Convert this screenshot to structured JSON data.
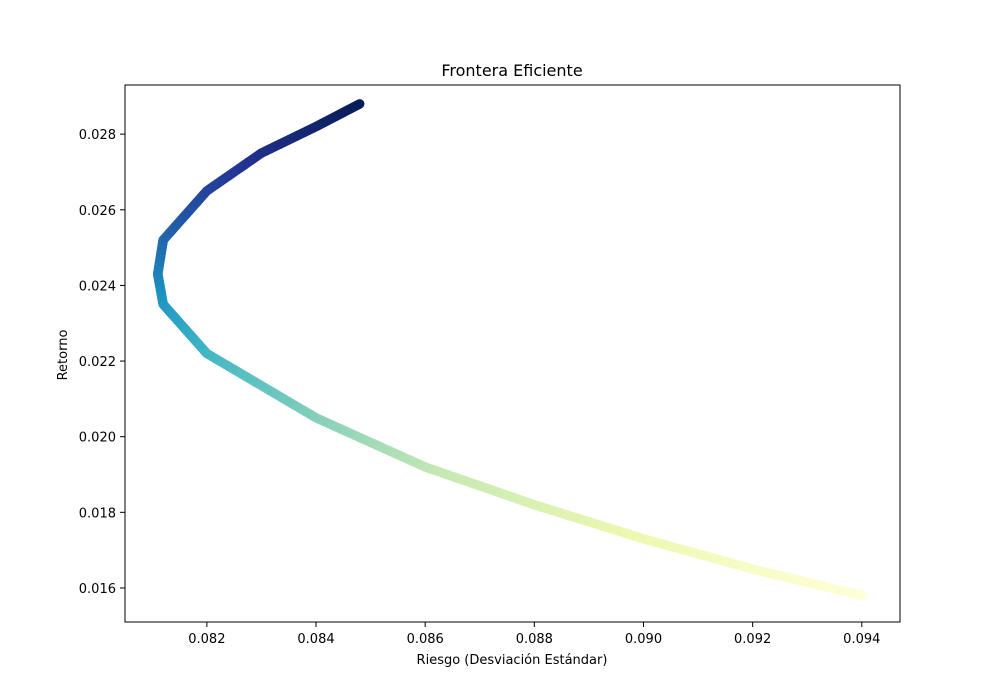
{
  "chart_data": {
    "type": "scatter",
    "title": "Frontera Eficiente",
    "xlabel": "Riesgo (Desviación Estándar)",
    "ylabel": "Retorno",
    "xlim": [
      0.0805,
      0.0947
    ],
    "ylim": [
      0.0151,
      0.0293
    ],
    "xticks": [
      "0.082",
      "0.084",
      "0.086",
      "0.088",
      "0.090",
      "0.092",
      "0.094"
    ],
    "yticks": [
      "0.016",
      "0.018",
      "0.020",
      "0.022",
      "0.024",
      "0.026",
      "0.028"
    ],
    "grid": false,
    "legend": "none",
    "colormap": "YlGnBu",
    "color_by": "return",
    "series": [
      {
        "description": "continuous frontier curve of portfolios, colored by return",
        "return_min": 0.0158,
        "return_max": 0.0288,
        "min_risk": 0.0811,
        "min_risk_return": 0.0243,
        "sample_points": [
          {
            "x": 0.094,
            "y": 0.0158
          },
          {
            "x": 0.092,
            "y": 0.0165
          },
          {
            "x": 0.09,
            "y": 0.0173
          },
          {
            "x": 0.088,
            "y": 0.0182
          },
          {
            "x": 0.086,
            "y": 0.0192
          },
          {
            "x": 0.084,
            "y": 0.0205
          },
          {
            "x": 0.082,
            "y": 0.0222
          },
          {
            "x": 0.0812,
            "y": 0.0235
          },
          {
            "x": 0.0811,
            "y": 0.0243
          },
          {
            "x": 0.0812,
            "y": 0.0252
          },
          {
            "x": 0.082,
            "y": 0.0265
          },
          {
            "x": 0.083,
            "y": 0.0275
          },
          {
            "x": 0.084,
            "y": 0.0282
          },
          {
            "x": 0.0848,
            "y": 0.0288
          }
        ]
      }
    ]
  }
}
